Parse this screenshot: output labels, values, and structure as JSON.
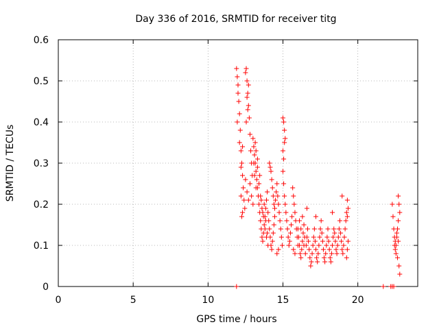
{
  "chart_data": {
    "type": "scatter",
    "title": "Day 336 of 2016, SRMTID for receiver titg",
    "xlabel": "GPS time / hours",
    "ylabel": "SRMTID / TECUs",
    "xlim": [
      0,
      24
    ],
    "ylim": [
      0,
      0.6
    ],
    "x_ticks": [
      0,
      5,
      10,
      15,
      20
    ],
    "y_ticks": [
      0,
      0.1,
      0.2,
      0.3,
      0.4,
      0.5,
      0.6
    ],
    "x_tick_labels": [
      "0",
      "5",
      "10",
      "15",
      "20"
    ],
    "y_tick_labels": [
      "0",
      "0.1",
      "0.2",
      "0.3",
      "0.4",
      "0.5",
      "0.6"
    ],
    "grid": true,
    "marker": "+",
    "series_color": "#ff0000",
    "series": [
      {
        "name": "SRMTID",
        "points": [
          [
            11.9,
            0.53
          ],
          [
            11.95,
            0.51
          ],
          [
            12.0,
            0.49
          ],
          [
            12.05,
            0.45
          ],
          [
            12.1,
            0.42
          ],
          [
            12.15,
            0.38
          ],
          [
            12.2,
            0.33
          ],
          [
            12.25,
            0.3
          ],
          [
            12.3,
            0.27
          ],
          [
            12.35,
            0.24
          ],
          [
            12.4,
            0.21
          ],
          [
            12.45,
            0.19
          ],
          [
            12.3,
            0.18
          ],
          [
            12.25,
            0.17
          ],
          [
            12.2,
            0.22
          ],
          [
            12.1,
            0.35
          ],
          [
            12.0,
            0.47
          ],
          [
            11.95,
            0.4
          ],
          [
            12.3,
            0.34
          ],
          [
            12.2,
            0.29
          ],
          [
            12.5,
            0.52
          ],
          [
            12.55,
            0.53
          ],
          [
            12.6,
            0.5
          ],
          [
            12.65,
            0.47
          ],
          [
            12.7,
            0.44
          ],
          [
            12.75,
            0.41
          ],
          [
            12.8,
            0.37
          ],
          [
            12.85,
            0.33
          ],
          [
            12.9,
            0.3
          ],
          [
            12.95,
            0.27
          ],
          [
            12.6,
            0.46
          ],
          [
            12.65,
            0.43
          ],
          [
            12.7,
            0.49
          ],
          [
            12.55,
            0.4
          ],
          [
            12.5,
            0.26
          ],
          [
            12.6,
            0.23
          ],
          [
            12.7,
            0.21
          ],
          [
            12.8,
            0.25
          ],
          [
            12.9,
            0.22
          ],
          [
            13.0,
            0.2
          ],
          [
            13.0,
            0.36
          ],
          [
            13.05,
            0.34
          ],
          [
            13.1,
            0.32
          ],
          [
            13.15,
            0.3
          ],
          [
            13.2,
            0.28
          ],
          [
            13.25,
            0.26
          ],
          [
            13.3,
            0.24
          ],
          [
            13.35,
            0.22
          ],
          [
            13.4,
            0.2
          ],
          [
            13.45,
            0.18
          ],
          [
            13.5,
            0.16
          ],
          [
            13.55,
            0.14
          ],
          [
            13.6,
            0.12
          ],
          [
            13.65,
            0.11
          ],
          [
            13.7,
            0.13
          ],
          [
            13.75,
            0.15
          ],
          [
            13.8,
            0.17
          ],
          [
            13.85,
            0.19
          ],
          [
            13.9,
            0.21
          ],
          [
            13.95,
            0.23
          ],
          [
            13.1,
            0.27
          ],
          [
            13.2,
            0.24
          ],
          [
            13.3,
            0.29
          ],
          [
            13.4,
            0.25
          ],
          [
            13.5,
            0.22
          ],
          [
            13.6,
            0.19
          ],
          [
            13.7,
            0.17
          ],
          [
            13.8,
            0.14
          ],
          [
            13.9,
            0.12
          ],
          [
            14.0,
            0.1
          ],
          [
            13.2,
            0.33
          ],
          [
            13.3,
            0.31
          ],
          [
            13.15,
            0.35
          ],
          [
            13.05,
            0.3
          ],
          [
            13.45,
            0.27
          ],
          [
            13.55,
            0.21
          ],
          [
            13.65,
            0.18
          ],
          [
            13.75,
            0.2
          ],
          [
            13.85,
            0.16
          ],
          [
            13.95,
            0.13
          ],
          [
            14.0,
            0.18
          ],
          [
            14.05,
            0.16
          ],
          [
            14.1,
            0.14
          ],
          [
            14.15,
            0.12
          ],
          [
            14.2,
            0.1
          ],
          [
            14.25,
            0.09
          ],
          [
            14.3,
            0.11
          ],
          [
            14.35,
            0.13
          ],
          [
            14.4,
            0.15
          ],
          [
            14.45,
            0.17
          ],
          [
            14.1,
            0.3
          ],
          [
            14.15,
            0.29
          ],
          [
            14.2,
            0.28
          ],
          [
            14.25,
            0.26
          ],
          [
            14.3,
            0.24
          ],
          [
            14.35,
            0.22
          ],
          [
            14.4,
            0.2
          ],
          [
            14.45,
            0.19
          ],
          [
            14.5,
            0.21
          ],
          [
            14.55,
            0.23
          ],
          [
            14.6,
            0.25
          ],
          [
            14.65,
            0.22
          ],
          [
            14.7,
            0.2
          ],
          [
            14.75,
            0.18
          ],
          [
            14.8,
            0.16
          ],
          [
            14.85,
            0.14
          ],
          [
            14.9,
            0.12
          ],
          [
            14.95,
            0.1
          ],
          [
            14.6,
            0.08
          ],
          [
            14.7,
            0.09
          ],
          [
            15.0,
            0.41
          ],
          [
            15.05,
            0.4
          ],
          [
            15.1,
            0.38
          ],
          [
            15.15,
            0.36
          ],
          [
            15.0,
            0.33
          ],
          [
            15.05,
            0.31
          ],
          [
            15.1,
            0.35
          ],
          [
            15.0,
            0.28
          ],
          [
            15.05,
            0.25
          ],
          [
            15.1,
            0.22
          ],
          [
            15.15,
            0.2
          ],
          [
            15.2,
            0.18
          ],
          [
            15.25,
            0.16
          ],
          [
            15.3,
            0.14
          ],
          [
            15.35,
            0.12
          ],
          [
            15.4,
            0.1
          ],
          [
            15.45,
            0.11
          ],
          [
            15.5,
            0.13
          ],
          [
            15.55,
            0.15
          ],
          [
            15.6,
            0.17
          ],
          [
            15.65,
            0.24
          ],
          [
            15.7,
            0.22
          ],
          [
            15.75,
            0.2
          ],
          [
            15.8,
            0.18
          ],
          [
            15.85,
            0.16
          ],
          [
            15.9,
            0.14
          ],
          [
            15.95,
            0.12
          ],
          [
            16.0,
            0.1
          ],
          [
            15.7,
            0.09
          ],
          [
            15.8,
            0.08
          ],
          [
            16.0,
            0.14
          ],
          [
            16.05,
            0.12
          ],
          [
            16.1,
            0.1
          ],
          [
            16.15,
            0.08
          ],
          [
            16.2,
            0.07
          ],
          [
            16.25,
            0.09
          ],
          [
            16.3,
            0.11
          ],
          [
            16.35,
            0.13
          ],
          [
            16.4,
            0.15
          ],
          [
            16.45,
            0.12
          ],
          [
            16.1,
            0.16
          ],
          [
            16.2,
            0.14
          ],
          [
            16.3,
            0.17
          ],
          [
            16.4,
            0.1
          ],
          [
            16.5,
            0.08
          ],
          [
            16.55,
            0.1
          ],
          [
            16.6,
            0.12
          ],
          [
            16.65,
            0.14
          ],
          [
            16.7,
            0.11
          ],
          [
            16.75,
            0.09
          ],
          [
            16.8,
            0.07
          ],
          [
            16.85,
            0.05
          ],
          [
            16.9,
            0.06
          ],
          [
            16.95,
            0.08
          ],
          [
            17.0,
            0.1
          ],
          [
            17.05,
            0.12
          ],
          [
            17.1,
            0.14
          ],
          [
            17.15,
            0.11
          ],
          [
            17.2,
            0.09
          ],
          [
            17.25,
            0.07
          ],
          [
            17.3,
            0.06
          ],
          [
            17.35,
            0.08
          ],
          [
            17.4,
            0.1
          ],
          [
            17.45,
            0.12
          ],
          [
            17.5,
            0.14
          ],
          [
            17.55,
            0.16
          ],
          [
            17.6,
            0.13
          ],
          [
            17.65,
            0.11
          ],
          [
            17.7,
            0.09
          ],
          [
            17.75,
            0.07
          ],
          [
            17.8,
            0.06
          ],
          [
            17.85,
            0.08
          ],
          [
            17.9,
            0.1
          ],
          [
            17.95,
            0.12
          ],
          [
            18.0,
            0.14
          ],
          [
            18.05,
            0.11
          ],
          [
            18.1,
            0.09
          ],
          [
            18.15,
            0.07
          ],
          [
            18.2,
            0.06
          ],
          [
            18.25,
            0.08
          ],
          [
            18.3,
            0.1
          ],
          [
            18.35,
            0.12
          ],
          [
            18.4,
            0.14
          ],
          [
            18.45,
            0.13
          ],
          [
            18.5,
            0.11
          ],
          [
            18.55,
            0.09
          ],
          [
            18.6,
            0.08
          ],
          [
            18.65,
            0.1
          ],
          [
            18.7,
            0.12
          ],
          [
            18.75,
            0.14
          ],
          [
            18.8,
            0.16
          ],
          [
            18.85,
            0.13
          ],
          [
            18.9,
            0.11
          ],
          [
            18.95,
            0.09
          ],
          [
            19.0,
            0.08
          ],
          [
            19.05,
            0.1
          ],
          [
            19.1,
            0.12
          ],
          [
            19.15,
            0.14
          ],
          [
            19.2,
            0.16
          ],
          [
            19.25,
            0.18
          ],
          [
            18.95,
            0.22
          ],
          [
            19.3,
            0.21
          ],
          [
            19.35,
            0.19
          ],
          [
            19.3,
            0.17
          ],
          [
            19.25,
            0.07
          ],
          [
            19.3,
            0.09
          ],
          [
            19.35,
            0.11
          ],
          [
            17.2,
            0.17
          ],
          [
            18.3,
            0.18
          ],
          [
            16.6,
            0.19
          ],
          [
            22.3,
            0.2
          ],
          [
            22.35,
            0.17
          ],
          [
            22.4,
            0.14
          ],
          [
            22.45,
            0.12
          ],
          [
            22.5,
            0.11
          ],
          [
            22.55,
            0.1
          ],
          [
            22.6,
            0.12
          ],
          [
            22.65,
            0.14
          ],
          [
            22.7,
            0.16
          ],
          [
            22.75,
            0.2
          ],
          [
            22.7,
            0.22
          ],
          [
            22.8,
            0.18
          ],
          [
            22.5,
            0.09
          ],
          [
            22.55,
            0.08
          ],
          [
            22.65,
            0.07
          ],
          [
            22.75,
            0.05
          ],
          [
            22.8,
            0.03
          ],
          [
            22.6,
            0.13
          ],
          [
            22.45,
            0.1
          ],
          [
            22.7,
            0.11
          ],
          [
            11.9,
            0.0
          ],
          [
            21.7,
            0.0
          ],
          [
            22.2,
            0.0
          ],
          [
            22.3,
            0.0
          ],
          [
            22.4,
            0.0
          ]
        ]
      }
    ]
  }
}
